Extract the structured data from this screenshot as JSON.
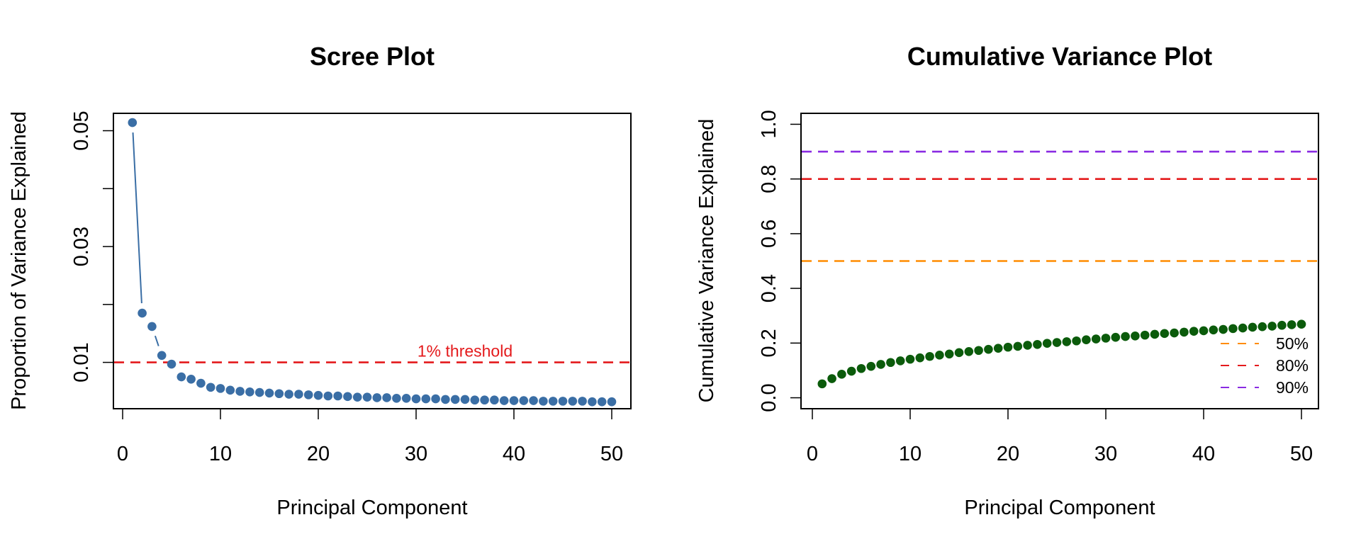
{
  "chart_data": [
    {
      "type": "line",
      "title": "Scree Plot",
      "xlabel": "Principal Component",
      "ylabel": "Proportion of Variance Explained",
      "xlim": [
        0,
        50
      ],
      "ylim": [
        0.002,
        0.053
      ],
      "x_ticks": [
        0,
        10,
        20,
        30,
        40,
        50
      ],
      "x_tick_labels": [
        "0",
        "10",
        "20",
        "30",
        "40",
        "50"
      ],
      "y_ticks": [
        0.01,
        0.02,
        0.03,
        0.04,
        0.05
      ],
      "y_tick_labels": [
        "0.01",
        "",
        "0.03",
        "",
        "0.05"
      ],
      "series": [
        {
          "color": "#3a6ea5",
          "x": [
            1,
            2,
            3,
            4,
            5,
            6,
            7,
            8,
            9,
            10,
            11,
            12,
            13,
            14,
            15,
            16,
            17,
            18,
            19,
            20,
            21,
            22,
            23,
            24,
            25,
            26,
            27,
            28,
            29,
            30,
            31,
            32,
            33,
            34,
            35,
            36,
            37,
            38,
            39,
            40,
            41,
            42,
            43,
            44,
            45,
            46,
            47,
            48,
            49,
            50
          ],
          "values": [
            0.0514,
            0.0185,
            0.0162,
            0.0112,
            0.0097,
            0.0075,
            0.0071,
            0.0064,
            0.0057,
            0.0055,
            0.0052,
            0.005,
            0.0049,
            0.0048,
            0.0047,
            0.0046,
            0.0045,
            0.0045,
            0.0044,
            0.0043,
            0.0042,
            0.0042,
            0.0041,
            0.004,
            0.004,
            0.0039,
            0.0039,
            0.0038,
            0.0038,
            0.0037,
            0.0037,
            0.0037,
            0.0036,
            0.0036,
            0.0036,
            0.0035,
            0.0035,
            0.0035,
            0.0034,
            0.0034,
            0.0034,
            0.0034,
            0.0033,
            0.0033,
            0.0033,
            0.0033,
            0.0033,
            0.0032,
            0.0032,
            0.0032
          ]
        }
      ],
      "hlines": [
        {
          "y": 0.01,
          "color": "#e41a1c",
          "label": "1% threshold",
          "label_x": 35
        }
      ]
    },
    {
      "type": "scatter",
      "title": "Cumulative Variance Plot",
      "xlabel": "Principal Component",
      "ylabel": "Cumulative Variance Explained",
      "xlim": [
        0,
        50
      ],
      "ylim": [
        -0.04,
        1.04
      ],
      "x_ticks": [
        0,
        10,
        20,
        30,
        40,
        50
      ],
      "x_tick_labels": [
        "0",
        "10",
        "20",
        "30",
        "40",
        "50"
      ],
      "y_ticks": [
        0.0,
        0.2,
        0.4,
        0.6,
        0.8,
        1.0
      ],
      "y_tick_labels": [
        "0.0",
        "0.2",
        "0.4",
        "0.6",
        "0.8",
        "1.0"
      ],
      "series": [
        {
          "color": "#0b5b0b",
          "x": [
            1,
            2,
            3,
            4,
            5,
            6,
            7,
            8,
            9,
            10,
            11,
            12,
            13,
            14,
            15,
            16,
            17,
            18,
            19,
            20,
            21,
            22,
            23,
            24,
            25,
            26,
            27,
            28,
            29,
            30,
            31,
            32,
            33,
            34,
            35,
            36,
            37,
            38,
            39,
            40,
            41,
            42,
            43,
            44,
            45,
            46,
            47,
            48,
            49,
            50
          ],
          "values": [
            0.051,
            0.07,
            0.086,
            0.097,
            0.107,
            0.115,
            0.122,
            0.129,
            0.135,
            0.141,
            0.146,
            0.151,
            0.156,
            0.16,
            0.165,
            0.169,
            0.173,
            0.177,
            0.181,
            0.185,
            0.188,
            0.192,
            0.195,
            0.199,
            0.202,
            0.205,
            0.208,
            0.212,
            0.215,
            0.218,
            0.221,
            0.224,
            0.226,
            0.229,
            0.232,
            0.235,
            0.237,
            0.24,
            0.243,
            0.245,
            0.248,
            0.25,
            0.253,
            0.255,
            0.258,
            0.26,
            0.262,
            0.265,
            0.267,
            0.269
          ]
        }
      ],
      "hlines": [
        {
          "y": 0.5,
          "color": "#ff8c00"
        },
        {
          "y": 0.8,
          "color": "#e41a1c"
        },
        {
          "y": 0.9,
          "color": "#8a2be2"
        }
      ],
      "legend": {
        "position": "bottom-right",
        "entries": [
          {
            "label": "50%",
            "color": "#ff8c00"
          },
          {
            "label": "80%",
            "color": "#e41a1c"
          },
          {
            "label": "90%",
            "color": "#8a2be2"
          }
        ]
      }
    }
  ]
}
